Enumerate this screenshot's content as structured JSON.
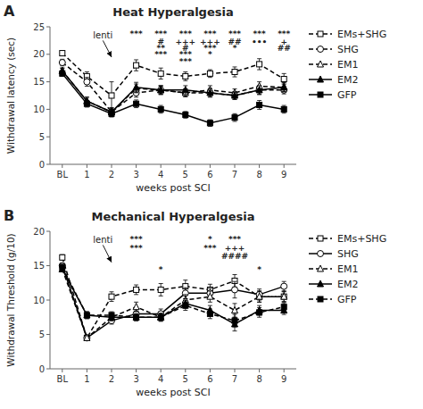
{
  "chart_data": [
    {
      "type": "line",
      "panel_label": "A",
      "title": "Heat Hyperalgesia",
      "y_label": "Withdrawal latency (sec)",
      "x_label": "weeks post SCI",
      "ylim": [
        0,
        25
      ],
      "yticks": [
        0,
        5,
        10,
        15,
        20,
        25
      ],
      "grid": false,
      "legend": "right",
      "categories": [
        "BL",
        "1",
        "2",
        "3",
        "4",
        "5",
        "6",
        "7",
        "8",
        "9"
      ],
      "series": [
        {
          "name": "EMs+SHG",
          "color": "black",
          "marker": "open-square",
          "line_style": "dashed",
          "values": [
            20.2,
            16.0,
            12.5,
            18.0,
            16.5,
            16.0,
            16.5,
            16.8,
            18.2,
            15.5
          ],
          "errors": [
            0.4,
            0.8,
            2.5,
            1.0,
            1.0,
            0.8,
            0.7,
            0.9,
            1.0,
            1.0
          ]
        },
        {
          "name": "SHG",
          "color": "black",
          "marker": "open-circle",
          "line_style": "dashed",
          "values": [
            18.5,
            15.0,
            9.5,
            13.0,
            13.5,
            13.0,
            13.0,
            12.5,
            13.5,
            13.5
          ],
          "errors": [
            0.6,
            0.8,
            0.8,
            0.8,
            0.8,
            0.7,
            0.7,
            0.7,
            0.8,
            0.7
          ]
        },
        {
          "name": "EM1",
          "color": "black",
          "marker": "open-triangle",
          "line_style": "dashed",
          "values": [
            17.0,
            11.5,
            9.5,
            13.8,
            13.5,
            13.0,
            13.5,
            13.0,
            14.2,
            14.0
          ],
          "errors": [
            0.5,
            0.7,
            0.7,
            0.8,
            0.7,
            0.7,
            0.8,
            0.7,
            0.8,
            0.8
          ]
        },
        {
          "name": "EM2",
          "color": "black",
          "marker": "filled-triangle",
          "line_style": "solid",
          "values": [
            17.0,
            11.5,
            9.5,
            14.0,
            13.5,
            13.5,
            13.0,
            12.5,
            13.5,
            14.0
          ],
          "errors": [
            0.5,
            0.7,
            0.7,
            0.9,
            0.8,
            0.8,
            0.8,
            0.7,
            0.8,
            0.8
          ]
        },
        {
          "name": "GFP",
          "color": "black",
          "marker": "filled-square",
          "line_style": "solid",
          "values": [
            16.5,
            11.0,
            9.2,
            11.0,
            10.0,
            9.0,
            7.5,
            8.5,
            10.8,
            10.0
          ],
          "errors": [
            0.5,
            0.6,
            0.6,
            0.7,
            0.7,
            0.6,
            0.6,
            0.7,
            0.8,
            0.7
          ]
        }
      ],
      "annotations": [
        {
          "text": "lenti",
          "x": "2",
          "y": 19.5,
          "text_y": 22.5
        },
        {
          "text": "***",
          "x": "3",
          "y": 23.2
        },
        {
          "text": "***",
          "x": "4",
          "y": 23.2
        },
        {
          "text": "#",
          "x": "4",
          "y": 21.8
        },
        {
          "text": "**",
          "x": "4",
          "y": 20.6
        },
        {
          "text": "***",
          "x": "4",
          "y": 19.4
        },
        {
          "text": "***",
          "x": "5",
          "y": 23.2
        },
        {
          "text": "+++",
          "x": "5",
          "y": 21.8
        },
        {
          "text": "#",
          "x": "5",
          "y": 20.6
        },
        {
          "text": "***",
          "x": "5",
          "y": 19.4
        },
        {
          "text": "***",
          "x": "5",
          "y": 18.2
        },
        {
          "text": "***",
          "x": "6",
          "y": 23.2
        },
        {
          "text": "+++",
          "x": "6",
          "y": 21.8
        },
        {
          "text": "***",
          "x": "6",
          "y": 20.6
        },
        {
          "text": "*",
          "x": "6",
          "y": 19.4
        },
        {
          "text": "***",
          "x": "7",
          "y": 23.2
        },
        {
          "text": "##",
          "x": "7",
          "y": 21.8
        },
        {
          "text": "*",
          "x": "7",
          "y": 20.6
        },
        {
          "text": "***",
          "x": "8",
          "y": 23.2
        },
        {
          "text": "•••",
          "x": "8",
          "y": 21.8
        },
        {
          "text": "***",
          "x": "9",
          "y": 23.2
        },
        {
          "text": "+",
          "x": "9",
          "y": 21.8
        },
        {
          "text": "##",
          "x": "9",
          "y": 20.6
        }
      ]
    },
    {
      "type": "line",
      "panel_label": "B",
      "title": "Mechanical Hyperalgesia",
      "y_label": "Withdrawal Threshold (g/10)",
      "x_label": "weeks post SCI",
      "ylim": [
        0,
        20
      ],
      "yticks": [
        0,
        5,
        10,
        15,
        20
      ],
      "grid": false,
      "legend": "right",
      "categories": [
        "BL",
        "1",
        "2",
        "3",
        "4",
        "5",
        "6",
        "7",
        "8",
        "9"
      ],
      "series": [
        {
          "name": "EMs+SHG",
          "color": "black",
          "marker": "open-square",
          "line_style": "dashed",
          "values": [
            16.2,
            4.5,
            10.5,
            11.5,
            11.5,
            12.0,
            11.5,
            12.8,
            10.5,
            10.5
          ],
          "errors": [
            0.4,
            0.3,
            0.7,
            0.7,
            0.9,
            0.9,
            0.8,
            0.9,
            0.8,
            0.8
          ]
        },
        {
          "name": "SHG",
          "color": "black",
          "marker": "open-circle",
          "line_style": "solid",
          "values": [
            15.0,
            4.5,
            7.0,
            8.0,
            8.0,
            11.0,
            11.0,
            11.5,
            10.8,
            12.0
          ],
          "errors": [
            0.4,
            0.3,
            0.5,
            0.6,
            0.7,
            0.8,
            0.7,
            1.2,
            0.8,
            0.7
          ]
        },
        {
          "name": "EM1",
          "color": "black",
          "marker": "open-triangle",
          "line_style": "dashed",
          "values": [
            14.5,
            4.5,
            7.5,
            9.0,
            7.5,
            10.0,
            10.5,
            8.5,
            10.5,
            10.5
          ],
          "errors": [
            0.4,
            0.3,
            0.5,
            0.7,
            0.6,
            0.8,
            0.8,
            1.0,
            0.8,
            0.7
          ]
        },
        {
          "name": "EM2",
          "color": "black",
          "marker": "filled-triangle",
          "line_style": "solid",
          "values": [
            14.5,
            7.8,
            7.5,
            7.5,
            7.5,
            9.5,
            8.5,
            6.5,
            8.5,
            8.5
          ],
          "errors": [
            0.4,
            0.5,
            0.5,
            0.5,
            0.5,
            0.7,
            0.7,
            1.0,
            0.7,
            0.6
          ]
        },
        {
          "name": "GFP",
          "color": "black",
          "marker": "filled-square",
          "line_style": "dashed",
          "values": [
            14.8,
            7.8,
            7.8,
            7.5,
            7.5,
            9.2,
            8.0,
            7.0,
            8.2,
            9.0
          ],
          "errors": [
            0.4,
            0.5,
            0.5,
            0.5,
            0.5,
            0.7,
            0.7,
            0.9,
            0.7,
            0.6
          ]
        }
      ],
      "annotations": [
        {
          "text": "lenti",
          "x": "2",
          "y": 15.5,
          "text_y": 18.0
        },
        {
          "text": "***",
          "x": "3",
          "y": 18.5
        },
        {
          "text": "***",
          "x": "3",
          "y": 17.2
        },
        {
          "text": "*",
          "x": "4",
          "y": 14.0
        },
        {
          "text": "*",
          "x": "6",
          "y": 18.5
        },
        {
          "text": "***",
          "x": "6",
          "y": 17.2
        },
        {
          "text": "***",
          "x": "7",
          "y": 18.5
        },
        {
          "text": "+++",
          "x": "7",
          "y": 17.2
        },
        {
          "text": "####",
          "x": "7",
          "y": 16.0
        },
        {
          "text": "*",
          "x": "8",
          "y": 14.0
        }
      ]
    }
  ]
}
